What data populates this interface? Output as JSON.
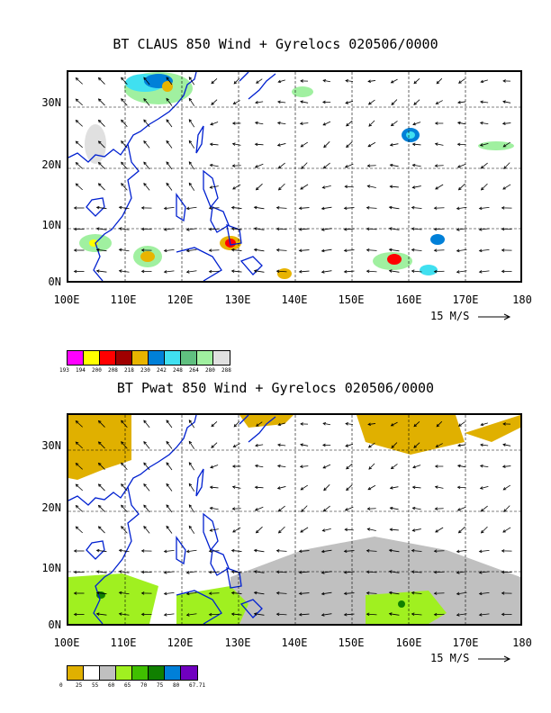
{
  "panels": [
    {
      "title": "BT CLAUS 850 Wind + Gyrelocs 020506/0000",
      "y_ticks": [
        "30N",
        "20N",
        "10N",
        "0N"
      ],
      "x_ticks": [
        "100E",
        "110E",
        "120E",
        "130E",
        "140E",
        "150E",
        "160E",
        "170E",
        "180"
      ],
      "vector_scale_label": "15 M/S",
      "legend": {
        "colors": [
          "#ff00ff",
          "#ffff00",
          "#ff0000",
          "#a00000",
          "#e8b400",
          "#0080d8",
          "#40e0f0",
          "#60c080",
          "#a0f0a0",
          "#e0e0e0"
        ],
        "values": [
          "193",
          "194",
          "200",
          "208",
          "218",
          "230",
          "242",
          "248",
          "264",
          "280",
          "288"
        ]
      }
    },
    {
      "title": "BT Pwat 850 Wind + Gyrelocs 020506/0000",
      "y_ticks": [
        "30N",
        "20N",
        "10N",
        "0N"
      ],
      "x_ticks": [
        "100E",
        "110E",
        "120E",
        "130E",
        "140E",
        "150E",
        "160E",
        "170E",
        "180"
      ],
      "vector_scale_label": "15 M/S",
      "legend": {
        "colors": [
          "#e0b000",
          "#ffffff",
          "#c0c0c0",
          "#a0f020",
          "#40c000",
          "#108000",
          "#0080d8",
          "#7000c0"
        ],
        "values": [
          "0",
          "25",
          "55",
          "60",
          "65",
          "70",
          "75",
          "80",
          "67.71"
        ]
      }
    }
  ]
}
